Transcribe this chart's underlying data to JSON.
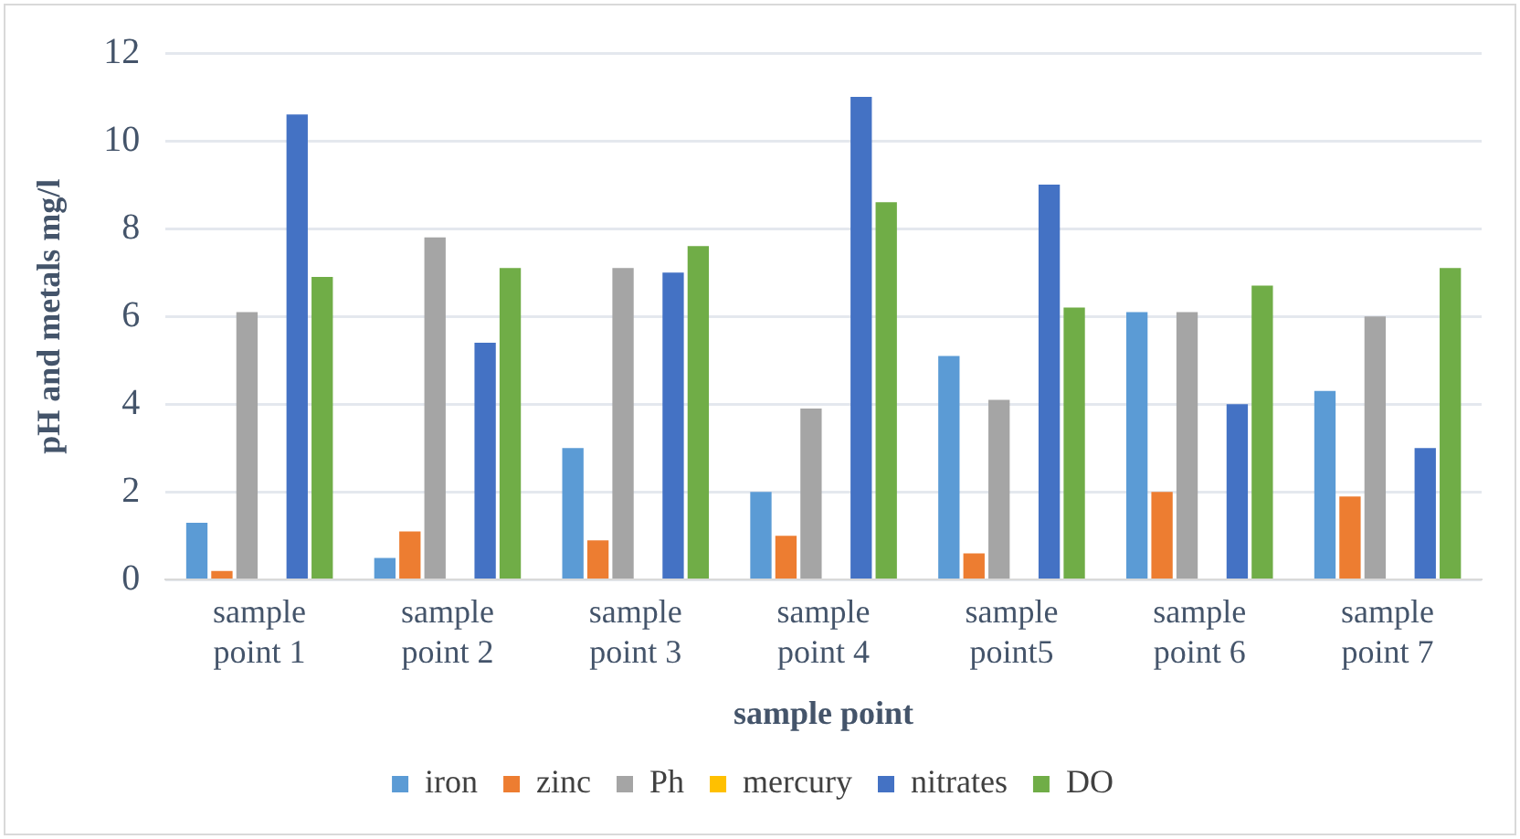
{
  "chart_data": {
    "type": "bar",
    "xlabel": "sample point",
    "ylabel": "pH and metals mg/l",
    "categories": [
      "sample point 1",
      "sample point 2",
      "sample point 3",
      "sample point 4",
      "sample point5",
      "sample point 6",
      "sample point 7"
    ],
    "series": [
      {
        "name": "iron",
        "color": "#5b9bd5",
        "values": [
          1.3,
          0.5,
          3.0,
          2.0,
          5.1,
          6.1,
          4.3
        ]
      },
      {
        "name": "zinc",
        "color": "#ed7d31",
        "values": [
          0.2,
          1.1,
          0.9,
          1.0,
          0.6,
          2.0,
          1.9
        ]
      },
      {
        "name": "Ph",
        "color": "#a5a5a5",
        "values": [
          6.1,
          7.8,
          7.1,
          3.9,
          4.1,
          6.1,
          6.0
        ]
      },
      {
        "name": "mercury",
        "color": "#ffc000",
        "values": [
          0,
          0,
          0,
          0,
          0,
          0,
          0
        ]
      },
      {
        "name": "nitrates",
        "color": "#4472c4",
        "values": [
          10.6,
          5.4,
          7.0,
          11.0,
          9.0,
          4.0,
          3.0
        ]
      },
      {
        "name": "DO",
        "color": "#70ad47",
        "values": [
          6.9,
          7.1,
          7.6,
          8.6,
          6.2,
          6.7,
          7.1
        ]
      }
    ],
    "ylim": [
      0,
      12
    ],
    "yticks": [
      0,
      2,
      4,
      6,
      8,
      10,
      12
    ],
    "grid": "y",
    "legend": "bottom"
  }
}
